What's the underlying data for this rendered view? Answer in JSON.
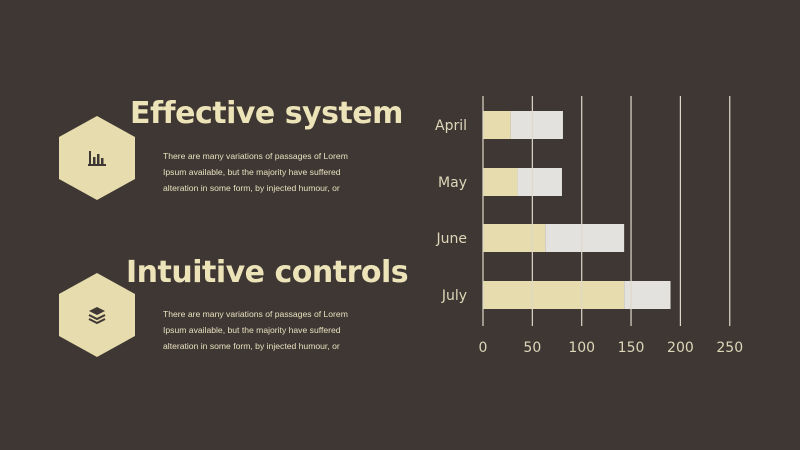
{
  "sections": [
    {
      "title": "Effective system",
      "icon": "bar-chart-icon",
      "lines": [
        "There are many variations of passages of Lorem",
        "Ipsum available, but the majority have suffered",
        "alteration in some form, by injected humour, or"
      ]
    },
    {
      "title": "Intuitive controls",
      "icon": "layers-icon",
      "lines": [
        "There are many variations of passages of Lorem",
        "Ipsum available, but the majority have suffered",
        "alteration in some form, by injected humour, or"
      ]
    }
  ],
  "colors": {
    "background": "#3f3734",
    "accent": "#e6dcad",
    "bar_secondary": "#e4e2de",
    "grid": "#ddd8c8"
  },
  "chart_data": {
    "type": "bar",
    "orientation": "horizontal",
    "stacked": true,
    "categories": [
      "April",
      "May",
      "June",
      "July"
    ],
    "series": [
      {
        "values": [
          28,
          35,
          63,
          143
        ]
      },
      {
        "values": [
          53,
          45,
          80,
          47
        ]
      }
    ],
    "xlim": [
      0,
      250
    ],
    "x_ticks": [
      0,
      50,
      100,
      150,
      200,
      250
    ],
    "grid": true,
    "legend": "none"
  }
}
